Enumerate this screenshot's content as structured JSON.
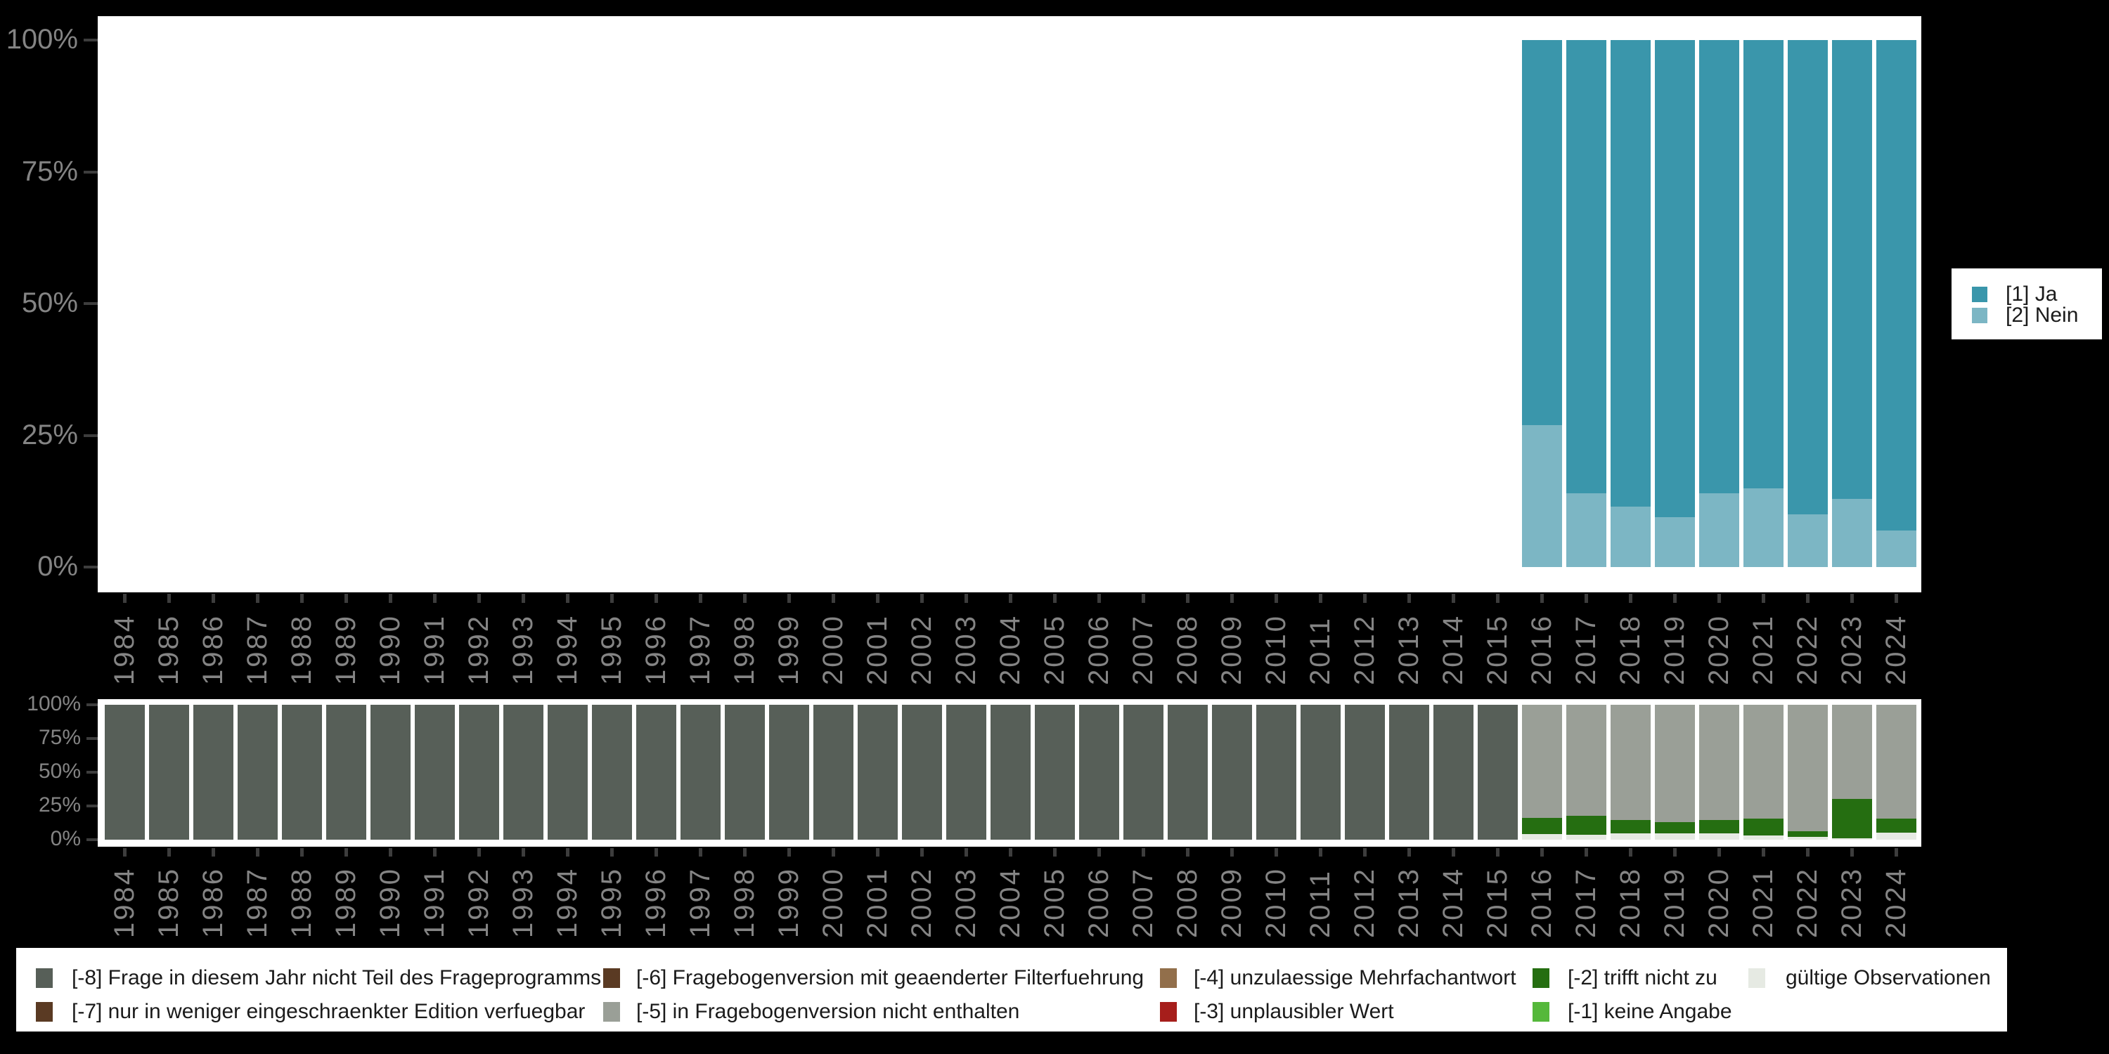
{
  "colors": {
    "background": "#000000",
    "plot_background": "#ffffff",
    "axis_text": "#848484",
    "tick": "#3d3d3d",
    "legend_text": "#1b1b1b",
    "ja": "#3a96ab",
    "nein": "#7cb6c4",
    "minus8": "#575f58",
    "minus7": "#5a3a23",
    "minus6": "#5a3a23",
    "minus5": "#9a9f97",
    "minus4": "#926f4b",
    "minus3": "#a61e1b",
    "minus2": "#256e11",
    "minus1": "#55b83b",
    "valid": "#e6eae3"
  },
  "top_chart": {
    "legend": [
      {
        "label": "[1] Ja",
        "color": "ja"
      },
      {
        "label": "[2] Nein",
        "color": "nein"
      }
    ]
  },
  "missing_chart": {
    "legend_columns": [
      [
        {
          "label": "[-8] Frage in diesem Jahr nicht Teil des Frageprogramms",
          "color": "minus8"
        },
        {
          "label": "[-7] nur in weniger eingeschraenkter Edition verfuegbar",
          "color": "minus7"
        }
      ],
      [
        {
          "label": "[-6] Fragebogenversion mit geaenderter Filterfuehrung",
          "color": "minus6"
        },
        {
          "label": "[-5] in Fragebogenversion nicht enthalten",
          "color": "minus5"
        }
      ],
      [
        {
          "label": "[-4] unzulaessige Mehrfachantwort",
          "color": "minus4"
        },
        {
          "label": "[-3] unplausibler Wert",
          "color": "minus3"
        }
      ],
      [
        {
          "label": "[-2] trifft nicht zu",
          "color": "minus2"
        },
        {
          "label": "[-1] keine Angabe",
          "color": "minus1"
        }
      ],
      [
        {
          "label": "gültige Observationen",
          "color": "valid"
        }
      ]
    ]
  },
  "chart_data": [
    {
      "type": "bar",
      "stacked": true,
      "name": "answer-distribution",
      "yticks": [
        "0%",
        "25%",
        "50%",
        "75%",
        "100%"
      ],
      "ylim": [
        0,
        100
      ],
      "legend_position": "right",
      "x": [
        1984,
        1985,
        1986,
        1987,
        1988,
        1989,
        1990,
        1991,
        1992,
        1993,
        1994,
        1995,
        1996,
        1997,
        1998,
        1999,
        2000,
        2001,
        2002,
        2003,
        2004,
        2005,
        2006,
        2007,
        2008,
        2009,
        2010,
        2011,
        2012,
        2013,
        2014,
        2015,
        2016,
        2017,
        2018,
        2019,
        2020,
        2021,
        2022,
        2023,
        2024
      ],
      "series": [
        {
          "name": "[2] Nein",
          "color": "nein",
          "values": [
            0,
            0,
            0,
            0,
            0,
            0,
            0,
            0,
            0,
            0,
            0,
            0,
            0,
            0,
            0,
            0,
            0,
            0,
            0,
            0,
            0,
            0,
            0,
            0,
            0,
            0,
            0,
            0,
            0,
            0,
            0,
            0,
            27,
            14,
            11.5,
            9.5,
            14,
            15,
            10,
            13,
            7
          ]
        },
        {
          "name": "[1] Ja",
          "color": "ja",
          "values": [
            0,
            0,
            0,
            0,
            0,
            0,
            0,
            0,
            0,
            0,
            0,
            0,
            0,
            0,
            0,
            0,
            0,
            0,
            0,
            0,
            0,
            0,
            0,
            0,
            0,
            0,
            0,
            0,
            0,
            0,
            0,
            0,
            73,
            86,
            88.5,
            90.5,
            86,
            85,
            90,
            87,
            93
          ]
        }
      ]
    },
    {
      "type": "bar",
      "stacked": true,
      "name": "missing-values-distribution",
      "yticks": [
        "0%",
        "25%",
        "50%",
        "75%",
        "100%"
      ],
      "ylim": [
        0,
        100
      ],
      "legend_position": "bottom",
      "x": [
        1984,
        1985,
        1986,
        1987,
        1988,
        1989,
        1990,
        1991,
        1992,
        1993,
        1994,
        1995,
        1996,
        1997,
        1998,
        1999,
        2000,
        2001,
        2002,
        2003,
        2004,
        2005,
        2006,
        2007,
        2008,
        2009,
        2010,
        2011,
        2012,
        2013,
        2014,
        2015,
        2016,
        2017,
        2018,
        2019,
        2020,
        2021,
        2022,
        2023,
        2024
      ],
      "series": [
        {
          "name": "gültige Observationen",
          "color": "valid",
          "values": [
            0,
            0,
            0,
            0,
            0,
            0,
            0,
            0,
            0,
            0,
            0,
            0,
            0,
            0,
            0,
            0,
            0,
            0,
            0,
            0,
            0,
            0,
            0,
            0,
            0,
            0,
            0,
            0,
            0,
            0,
            0,
            0,
            4,
            3.5,
            4.5,
            4.5,
            4.5,
            3,
            2,
            1,
            5
          ]
        },
        {
          "name": "[-2] trifft nicht zu",
          "color": "minus2",
          "values": [
            0,
            0,
            0,
            0,
            0,
            0,
            0,
            0,
            0,
            0,
            0,
            0,
            0,
            0,
            0,
            0,
            0,
            0,
            0,
            0,
            0,
            0,
            0,
            0,
            0,
            0,
            0,
            0,
            0,
            0,
            0,
            0,
            12,
            14,
            10,
            8.5,
            10,
            12.5,
            4.5,
            29,
            10.5
          ]
        },
        {
          "name": "[-5] in Fragebogenversion nicht enthalten",
          "color": "minus5",
          "values": [
            0,
            0,
            0,
            0,
            0,
            0,
            0,
            0,
            0,
            0,
            0,
            0,
            0,
            0,
            0,
            0,
            0,
            0,
            0,
            0,
            0,
            0,
            0,
            0,
            0,
            0,
            0,
            0,
            0,
            0,
            0,
            0,
            84,
            82.5,
            85.5,
            87,
            85.5,
            84.5,
            93.5,
            70,
            84.5
          ]
        },
        {
          "name": "[-8] Frage in diesem Jahr nicht Teil des Frageprogramms",
          "color": "minus8",
          "values": [
            100,
            100,
            100,
            100,
            100,
            100,
            100,
            100,
            100,
            100,
            100,
            100,
            100,
            100,
            100,
            100,
            100,
            100,
            100,
            100,
            100,
            100,
            100,
            100,
            100,
            100,
            100,
            100,
            100,
            100,
            100,
            100,
            0,
            0,
            0,
            0,
            0,
            0,
            0,
            0,
            0
          ]
        }
      ]
    }
  ]
}
